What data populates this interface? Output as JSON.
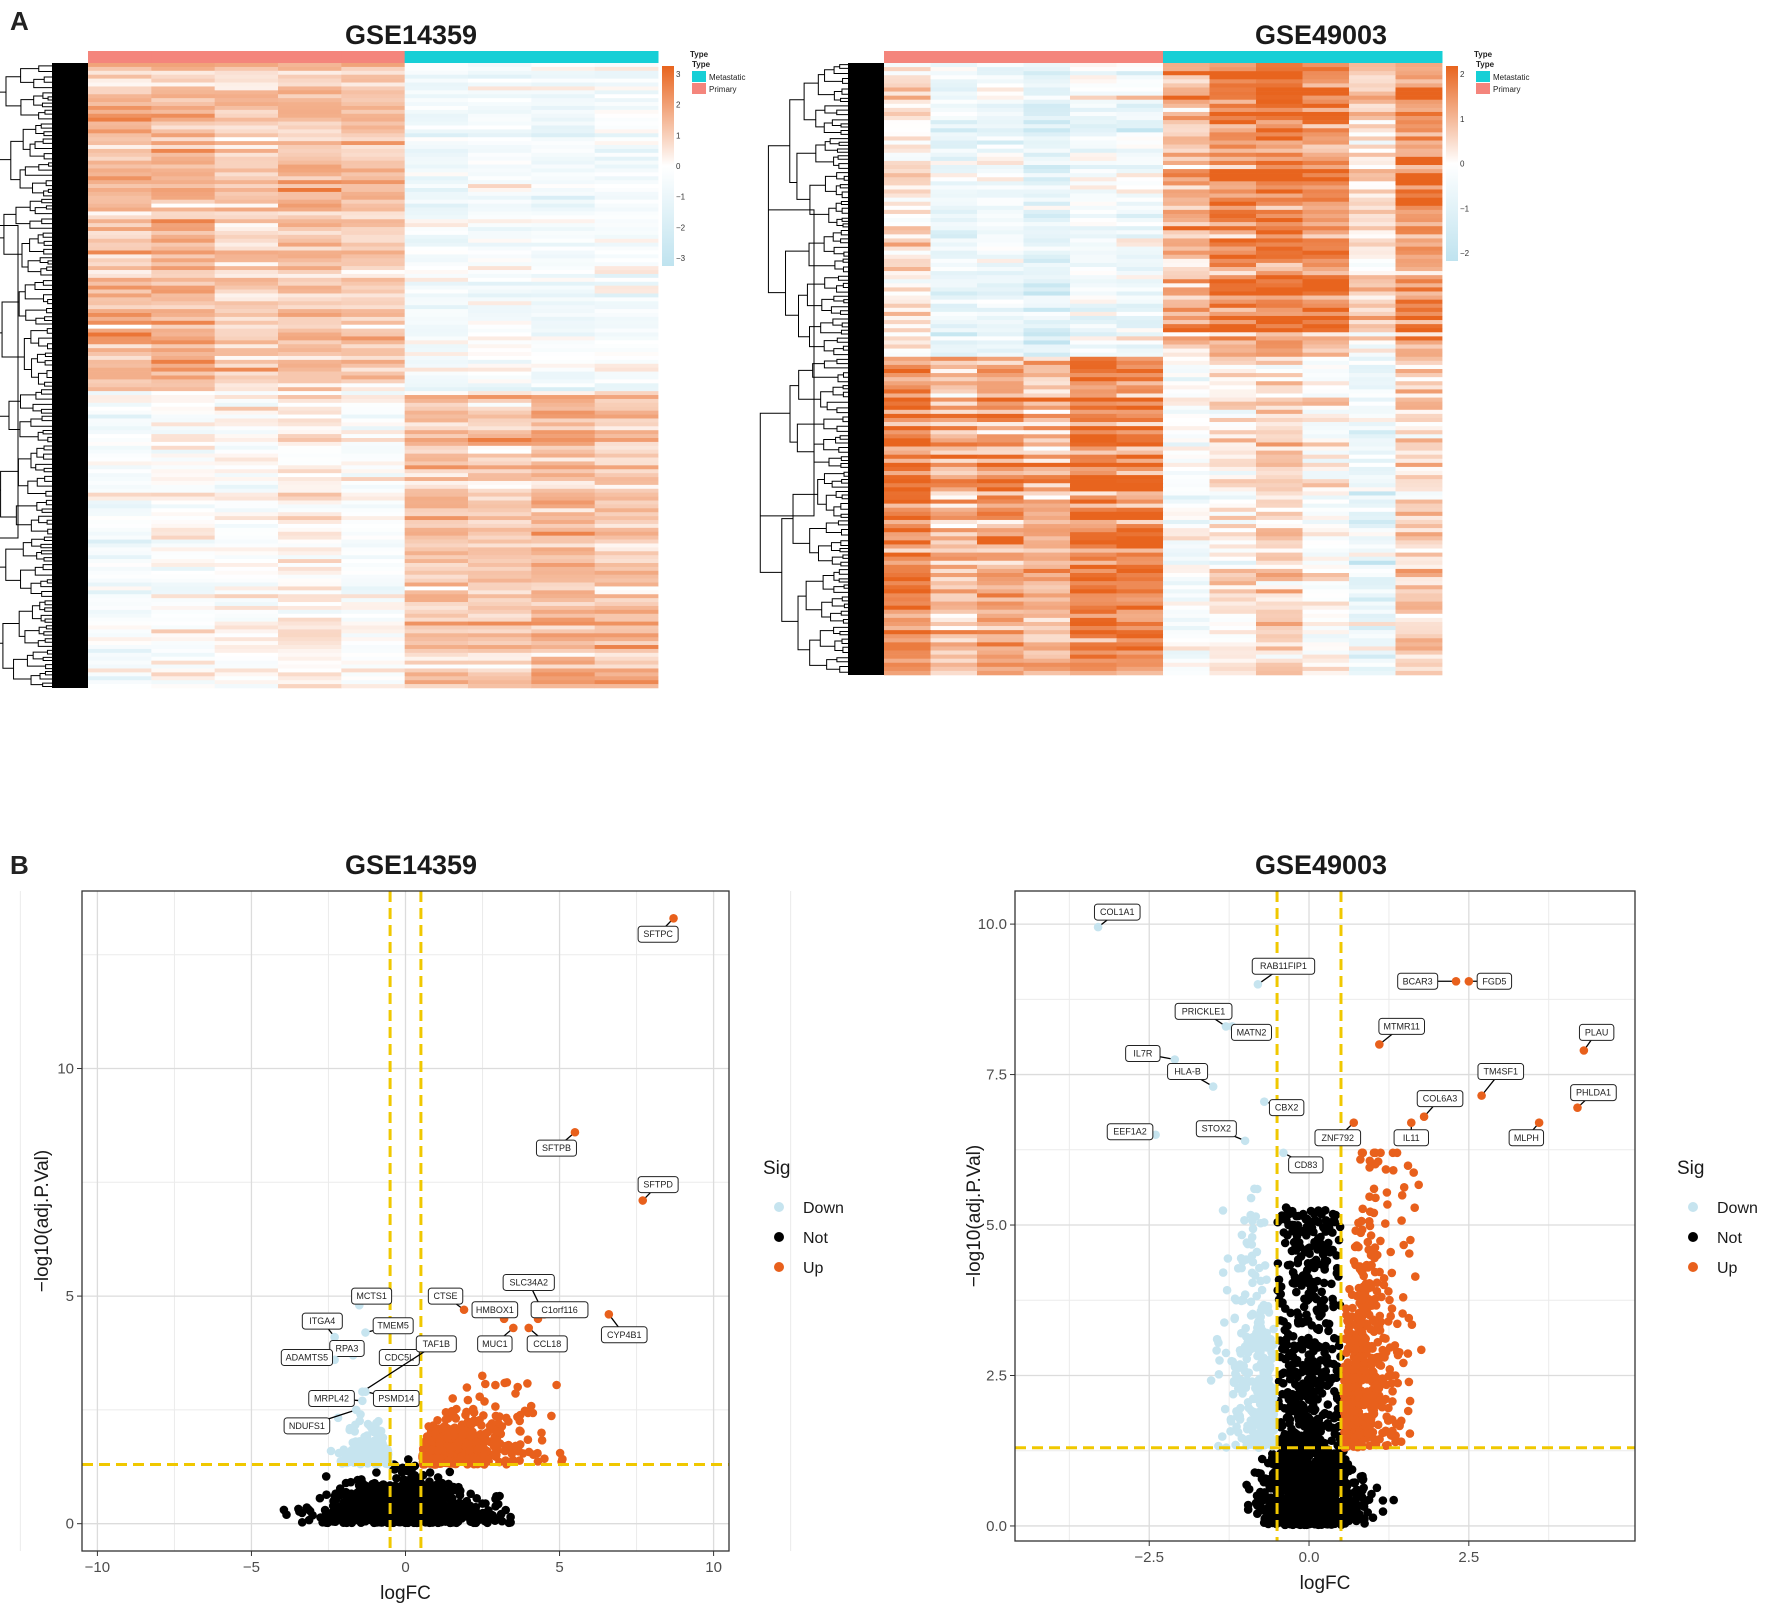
{
  "panels": {
    "a_letter": "A",
    "b_letter": "B"
  },
  "colors": {
    "up": "#e8601c",
    "down": "#c6e4ef",
    "not": "#000000",
    "primary": "#f4857c",
    "metastatic": "#16cfd6",
    "threshold": "#f0c800",
    "heat_high": "#e8641e",
    "heat_mid": "#ffffff",
    "heat_low": "#bfe3ef"
  },
  "chart_data": [
    {
      "type": "heatmap",
      "title": "GSE14359",
      "annotation_title": "Type",
      "legend_title": "Type",
      "groups": [
        "Metastatic",
        "Primary"
      ],
      "column_groups": [
        "Primary",
        "Primary",
        "Primary",
        "Primary",
        "Primary",
        "Metastatic",
        "Metastatic",
        "Metastatic",
        "Metastatic"
      ],
      "color_scale_ticks": [
        "3",
        "2",
        "1",
        "0",
        "−1",
        "−2",
        "−3"
      ],
      "scale_range": [
        -3,
        3
      ],
      "row_blocks": [
        {
          "label": "up in primary",
          "values": [
            1.3,
            1.1,
            0.9,
            0.8,
            1.0,
            -0.4,
            -0.3,
            -0.5,
            -0.4
          ]
        },
        {
          "label": "up in metastatic",
          "values": [
            -0.3,
            -0.2,
            0.1,
            -0.1,
            -0.2,
            1.1,
            0.9,
            1.3,
            1.0
          ]
        }
      ]
    },
    {
      "type": "heatmap",
      "title": "GSE49003",
      "annotation_title": "Type",
      "legend_title": "Type",
      "groups": [
        "Metastatic",
        "Primary"
      ],
      "column_groups": [
        "Primary",
        "Primary",
        "Primary",
        "Primary",
        "Primary",
        "Primary",
        "Metastatic",
        "Metastatic",
        "Metastatic",
        "Metastatic",
        "Metastatic",
        "Metastatic"
      ],
      "color_scale_ticks": [
        "2",
        "1",
        "0",
        "−1",
        "−2"
      ],
      "scale_range": [
        -2,
        2
      ],
      "row_blocks": [
        {
          "label": "up in metastatic",
          "values": [
            0.1,
            0.0,
            -0.1,
            -0.6,
            -0.6,
            -0.5,
            0.9,
            1.0,
            1.1,
            1.2,
            1.0,
            0.9
          ]
        },
        {
          "label": "up in primary",
          "values": [
            1.3,
            1.2,
            1.4,
            1.1,
            1.3,
            1.4,
            -0.1,
            -0.2,
            0.0,
            -0.1,
            0.0,
            0.1
          ]
        }
      ]
    },
    {
      "type": "scatter",
      "title": "GSE14359",
      "xlabel": "logFC",
      "ylabel": "−log10(adj.P.Val)",
      "xlim": [
        -10.5,
        10.5
      ],
      "ylim": [
        -0.6,
        13.9
      ],
      "x_ticks": [
        -10,
        -5,
        0,
        5,
        10
      ],
      "x_tick_labels": [
        "−10",
        "−5",
        "0",
        "5",
        "10"
      ],
      "y_ticks": [
        0,
        5,
        10
      ],
      "y_tick_labels": [
        "0",
        "5",
        "10"
      ],
      "thresholds": {
        "logfc": [
          -0.5,
          0.5
        ],
        "y": 1.3
      },
      "legend": {
        "title": "Sig",
        "items": [
          "Down",
          "Not",
          "Up"
        ]
      },
      "labeled_genes": [
        {
          "name": "SFTPC",
          "x": 8.7,
          "y": 13.3,
          "sig": "Up",
          "lx": 8.2,
          "ly": 12.95
        },
        {
          "name": "SFTPB",
          "x": 5.5,
          "y": 8.6,
          "sig": "Up",
          "lx": 4.9,
          "ly": 8.25
        },
        {
          "name": "SFTPD",
          "x": 7.7,
          "y": 7.1,
          "sig": "Up",
          "lx": 8.2,
          "ly": 7.45
        },
        {
          "name": "SLC34A2",
          "x": 4.5,
          "y": 4.6,
          "sig": "Up",
          "lx": 4.0,
          "ly": 5.3
        },
        {
          "name": "CTSE",
          "x": 1.9,
          "y": 4.7,
          "sig": "Up",
          "lx": 1.3,
          "ly": 5.0
        },
        {
          "name": "HMBOX1",
          "x": 3.2,
          "y": 4.5,
          "sig": "Up",
          "lx": 2.9,
          "ly": 4.7
        },
        {
          "name": "C1orf116",
          "x": 4.3,
          "y": 4.5,
          "sig": "Up",
          "lx": 5.0,
          "ly": 4.7
        },
        {
          "name": "CYP4B1",
          "x": 6.6,
          "y": 4.6,
          "sig": "Up",
          "lx": 7.1,
          "ly": 4.15
        },
        {
          "name": "MUC1",
          "x": 3.5,
          "y": 4.3,
          "sig": "Up",
          "lx": 2.9,
          "ly": 3.95
        },
        {
          "name": "CCL18",
          "x": 4.0,
          "y": 4.3,
          "sig": "Up",
          "lx": 4.6,
          "ly": 3.95
        },
        {
          "name": "MCTS1",
          "x": -1.5,
          "y": 4.8,
          "sig": "Down",
          "lx": -1.1,
          "ly": 5.0
        },
        {
          "name": "ITGA4",
          "x": -2.3,
          "y": 4.1,
          "sig": "Down",
          "lx": -2.7,
          "ly": 4.45
        },
        {
          "name": "TMEM5",
          "x": -1.3,
          "y": 4.2,
          "sig": "Down",
          "lx": -0.4,
          "ly": 4.35
        },
        {
          "name": "RPA3",
          "x": -1.7,
          "y": 3.7,
          "sig": "Down",
          "lx": -1.9,
          "ly": 3.85
        },
        {
          "name": "ADAMTS5",
          "x": -2.3,
          "y": 3.6,
          "sig": "Down",
          "lx": -3.2,
          "ly": 3.65
        },
        {
          "name": "CDC5L",
          "x": -0.5,
          "y": 3.6,
          "sig": "Down",
          "lx": -0.2,
          "ly": 3.65
        },
        {
          "name": "TAF1B",
          "x": -1.4,
          "y": 2.9,
          "sig": "Down",
          "lx": 1.0,
          "ly": 3.95
        },
        {
          "name": "MRPL42",
          "x": -1.4,
          "y": 2.7,
          "sig": "Down",
          "lx": -2.4,
          "ly": 2.75
        },
        {
          "name": "PSMD14",
          "x": -1.3,
          "y": 2.9,
          "sig": "Down",
          "lx": -0.3,
          "ly": 2.75
        },
        {
          "name": "NDUFS1",
          "x": -1.6,
          "y": 2.5,
          "sig": "Down",
          "lx": -3.2,
          "ly": 2.15
        }
      ]
    },
    {
      "type": "scatter",
      "title": "GSE49003",
      "xlabel": "logFC",
      "ylabel": "−log10(adj.P.Val)",
      "xlim": [
        -4.6,
        5.1
      ],
      "ylim": [
        -0.25,
        10.55
      ],
      "x_ticks": [
        -2.5,
        0,
        2.5
      ],
      "x_tick_labels": [
        "−2.5",
        "0.0",
        "2.5"
      ],
      "y_ticks": [
        0,
        2.5,
        5,
        7.5,
        10
      ],
      "y_tick_labels": [
        "0.0",
        "2.5",
        "5.0",
        "7.5",
        "10.0"
      ],
      "thresholds": {
        "logfc": [
          -0.5,
          0.5
        ],
        "y": 1.3
      },
      "legend": {
        "title": "Sig",
        "items": [
          "Down",
          "Not",
          "Up"
        ]
      },
      "labeled_genes": [
        {
          "name": "COL1A1",
          "x": -3.3,
          "y": 9.95,
          "sig": "Down",
          "lx": -3.0,
          "ly": 10.2
        },
        {
          "name": "RAB11FIP1",
          "x": -0.8,
          "y": 9.0,
          "sig": "Down",
          "lx": -0.4,
          "ly": 9.3
        },
        {
          "name": "BCAR3",
          "x": 2.3,
          "y": 9.05,
          "sig": "Up",
          "lx": 1.7,
          "ly": 9.05
        },
        {
          "name": "FGD5",
          "x": 2.5,
          "y": 9.05,
          "sig": "Up",
          "lx": 2.9,
          "ly": 9.05
        },
        {
          "name": "PRICKLE1",
          "x": -1.3,
          "y": 8.3,
          "sig": "Down",
          "lx": -1.65,
          "ly": 8.55
        },
        {
          "name": "MATN2",
          "x": -1.2,
          "y": 8.3,
          "sig": "Down",
          "lx": -0.9,
          "ly": 8.2
        },
        {
          "name": "MTMR11",
          "x": 1.1,
          "y": 8.0,
          "sig": "Up",
          "lx": 1.45,
          "ly": 8.3
        },
        {
          "name": "PLAU",
          "x": 4.3,
          "y": 7.9,
          "sig": "Up",
          "lx": 4.5,
          "ly": 8.2
        },
        {
          "name": "IL7R",
          "x": -2.1,
          "y": 7.75,
          "sig": "Down",
          "lx": -2.6,
          "ly": 7.85
        },
        {
          "name": "HLA-B",
          "x": -1.5,
          "y": 7.3,
          "sig": "Down",
          "lx": -1.9,
          "ly": 7.55
        },
        {
          "name": "TM4SF1",
          "x": 2.7,
          "y": 7.15,
          "sig": "Up",
          "lx": 3.0,
          "ly": 7.55
        },
        {
          "name": "CBX2",
          "x": -0.7,
          "y": 7.05,
          "sig": "Down",
          "lx": -0.35,
          "ly": 6.95
        },
        {
          "name": "COL6A3",
          "x": 1.8,
          "y": 6.8,
          "sig": "Up",
          "lx": 2.05,
          "ly": 7.1
        },
        {
          "name": "PHLDA1",
          "x": 4.2,
          "y": 6.95,
          "sig": "Up",
          "lx": 4.45,
          "ly": 7.2
        },
        {
          "name": "EEF1A2",
          "x": -2.4,
          "y": 6.5,
          "sig": "Down",
          "lx": -2.8,
          "ly": 6.55
        },
        {
          "name": "STOX2",
          "x": -1.0,
          "y": 6.4,
          "sig": "Down",
          "lx": -1.45,
          "ly": 6.6
        },
        {
          "name": "ZNF792",
          "x": 0.7,
          "y": 6.7,
          "sig": "Up",
          "lx": 0.45,
          "ly": 6.45
        },
        {
          "name": "IL11",
          "x": 1.6,
          "y": 6.7,
          "sig": "Up",
          "lx": 1.6,
          "ly": 6.45
        },
        {
          "name": "MLPH",
          "x": 3.6,
          "y": 6.7,
          "sig": "Up",
          "lx": 3.4,
          "ly": 6.45
        },
        {
          "name": "CD83",
          "x": -0.4,
          "y": 6.2,
          "sig": "Down",
          "lx": -0.05,
          "ly": 6.0
        }
      ]
    }
  ]
}
